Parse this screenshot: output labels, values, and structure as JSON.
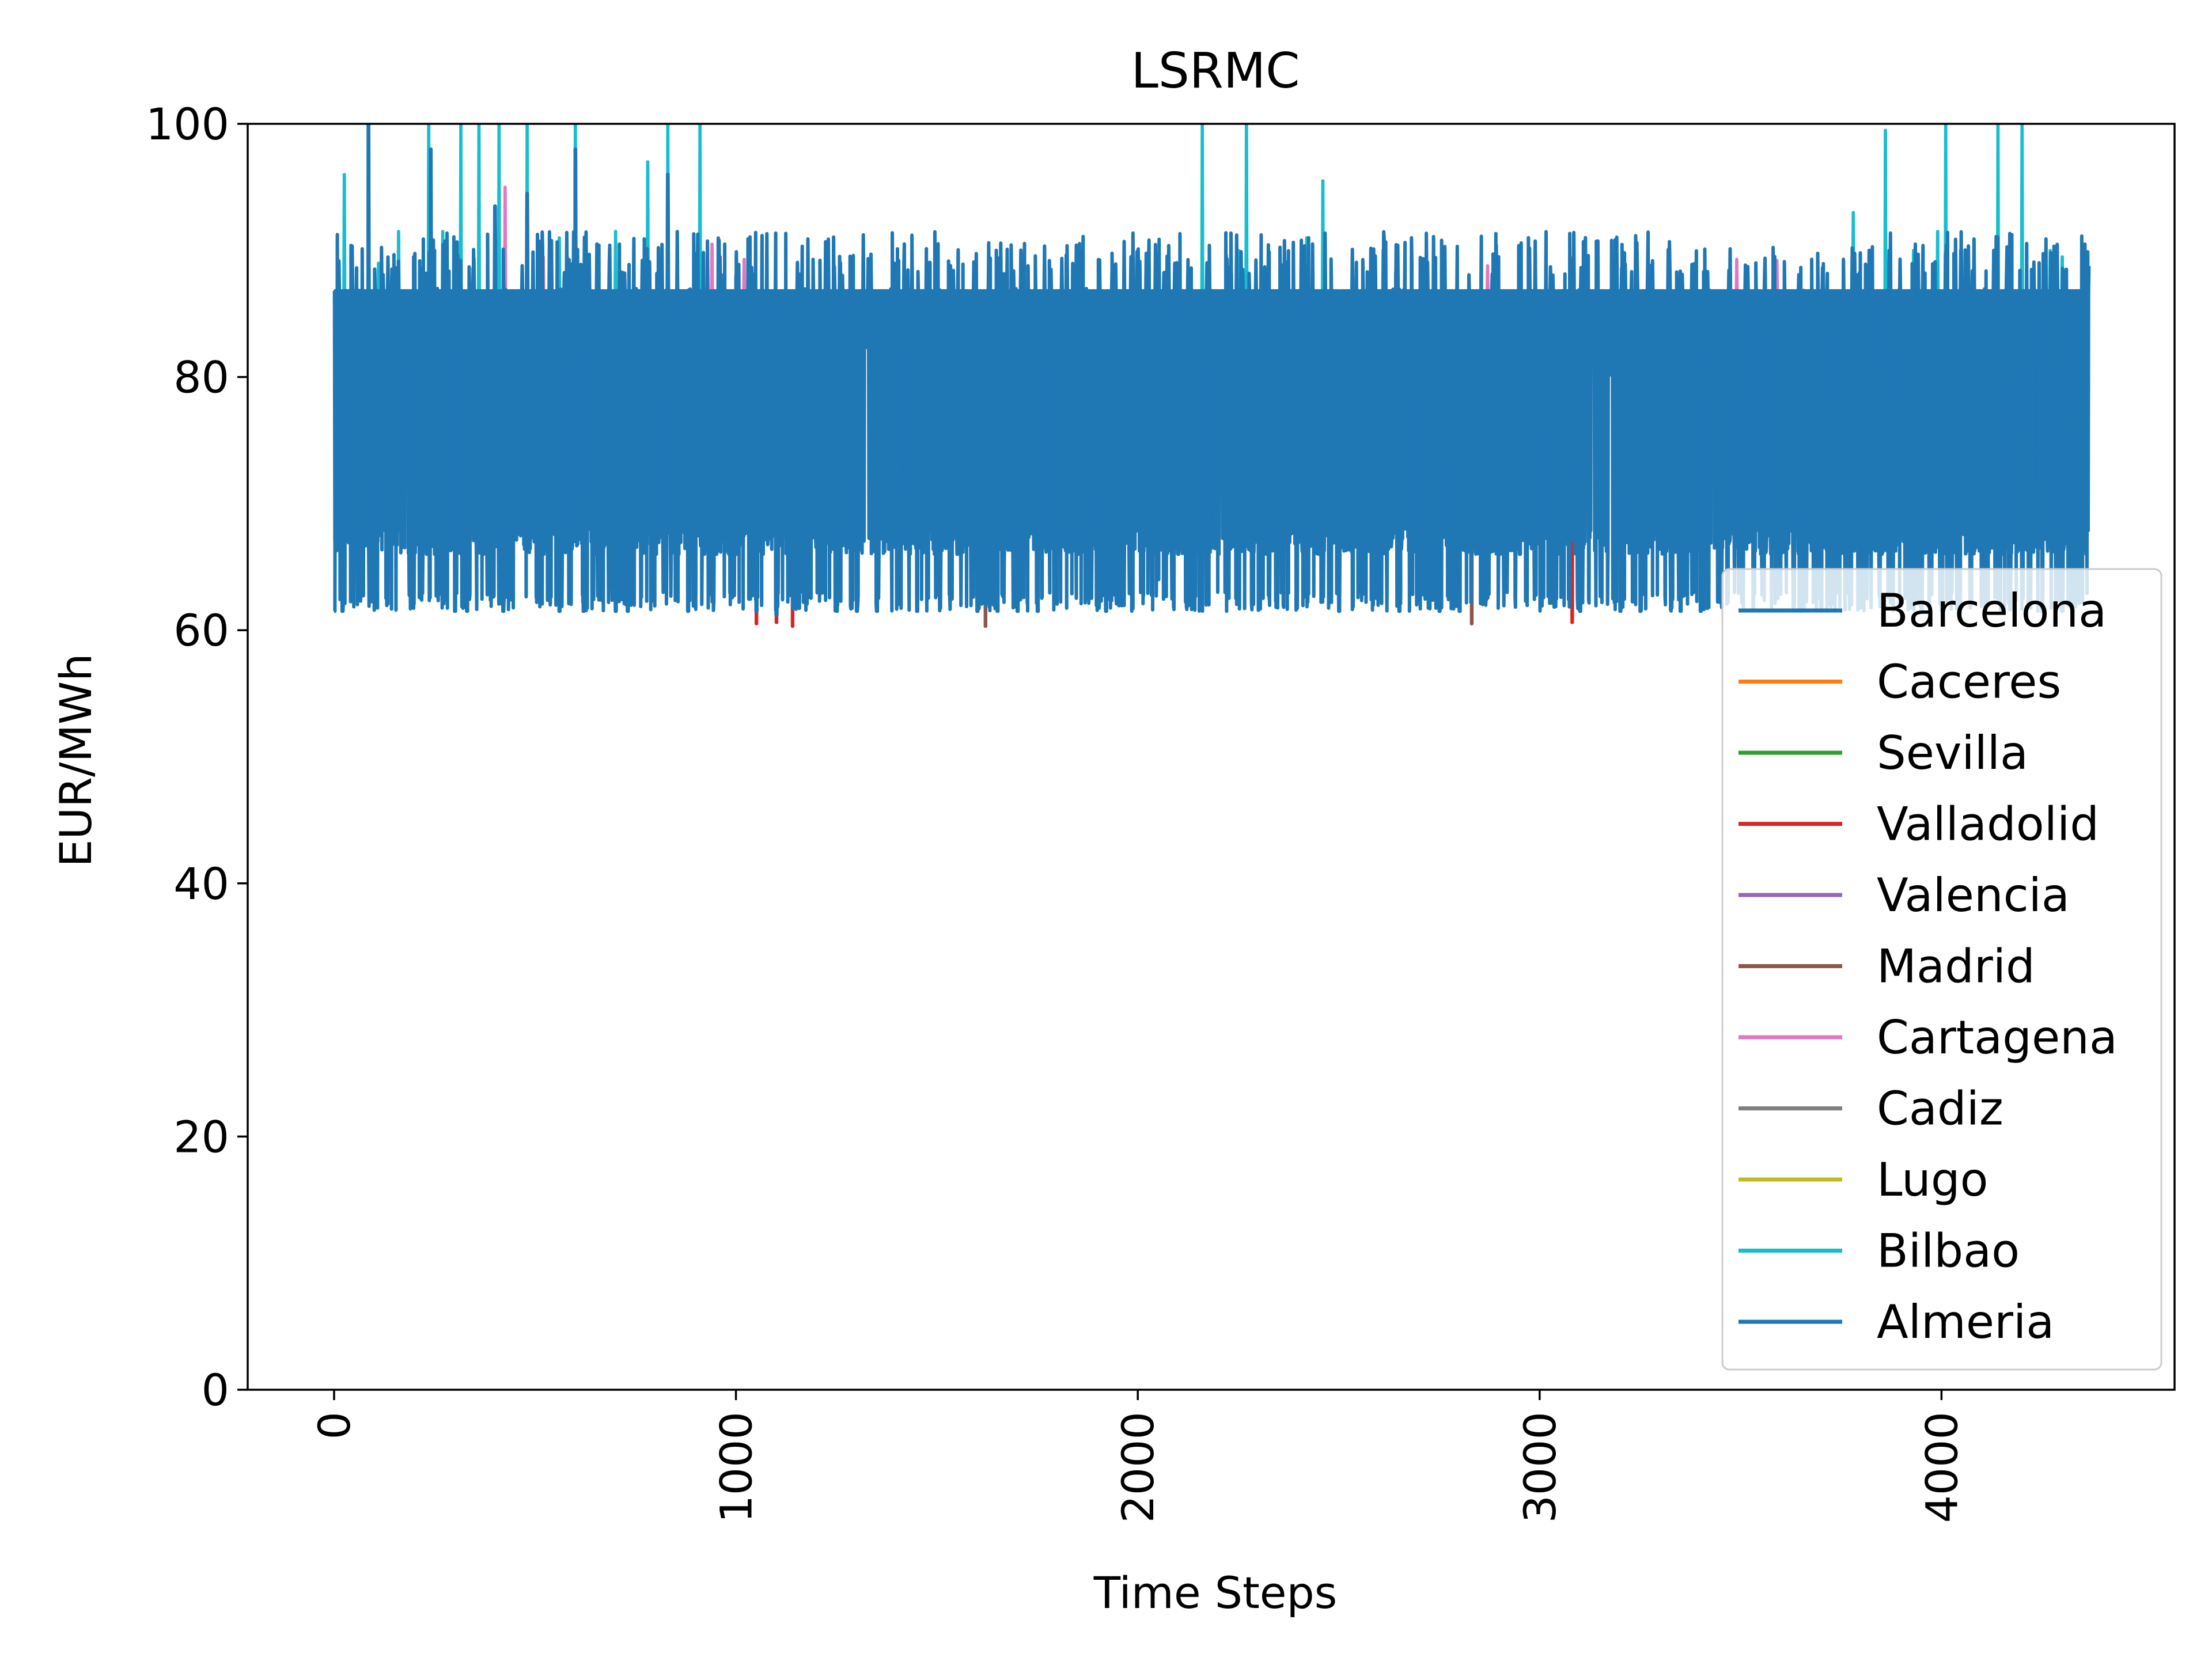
{
  "chart_data": {
    "type": "line",
    "title": "LSRMC",
    "xlabel": "Time Steps",
    "ylabel": "EUR/MWh",
    "xlim": [
      -215,
      4580
    ],
    "ylim": [
      0,
      100
    ],
    "x_ticks": [
      0,
      1000,
      2000,
      3000,
      4000
    ],
    "x_tick_labels": [
      "0",
      "1000",
      "2000",
      "3000",
      "4000"
    ],
    "y_ticks": [
      0,
      20,
      40,
      60,
      80,
      100
    ],
    "y_tick_labels": [
      "0",
      "20",
      "40",
      "60",
      "80",
      "100"
    ],
    "x_tick_rotation": 90,
    "grid": false,
    "legend": {
      "location": "lower-right",
      "frame": true
    },
    "series_count": 11,
    "time_steps": 4368,
    "baseline_value": 86.8,
    "series": [
      {
        "name": "Barcelona",
        "color": "#1f77b4",
        "dips": [
          [
            0,
            61.5
          ],
          [
            60,
            66
          ],
          [
            150,
            80.5
          ],
          [
            230,
            66
          ],
          [
            300,
            61.5
          ],
          [
            370,
            66
          ],
          [
            420,
            61.5
          ],
          [
            520,
            66
          ],
          [
            620,
            61.5
          ],
          [
            700,
            61.5
          ],
          [
            800,
            66
          ],
          [
            880,
            61.5
          ],
          [
            1000,
            66
          ],
          [
            1100,
            61.2
          ],
          [
            1250,
            61.5
          ],
          [
            1350,
            61.5
          ],
          [
            1500,
            66
          ],
          [
            1600,
            61.5
          ],
          [
            1700,
            61.5
          ],
          [
            1800,
            66
          ],
          [
            1920,
            61.5
          ],
          [
            2100,
            66
          ],
          [
            2350,
            66
          ],
          [
            2500,
            61.5
          ],
          [
            2650,
            61.5
          ],
          [
            2800,
            61.5
          ],
          [
            2950,
            66
          ],
          [
            3100,
            61.5
          ],
          [
            3250,
            61.5
          ],
          [
            3400,
            61.5
          ],
          [
            3550,
            66
          ],
          [
            3700,
            61.5
          ],
          [
            3850,
            66
          ],
          [
            4000,
            61.5
          ],
          [
            4150,
            66
          ],
          [
            4300,
            61.5
          ]
        ],
        "spikes": [
          [
            85,
            100
          ],
          [
            240,
            98
          ],
          [
            600,
            98
          ],
          [
            1000,
            88
          ],
          [
            2260,
            88.5
          ],
          [
            3820,
            90
          ],
          [
            4130,
            90
          ]
        ]
      },
      {
        "name": "Caceres",
        "color": "#ff7f0e",
        "dips": [],
        "spikes": []
      },
      {
        "name": "Sevilla",
        "color": "#2ca02c",
        "dips": [],
        "spikes": []
      },
      {
        "name": "Valladolid",
        "color": "#d62728",
        "dips": [
          [
            1050,
            60.5
          ],
          [
            1100,
            60.6
          ],
          [
            1140,
            60.3
          ],
          [
            3080,
            60.6
          ]
        ],
        "spikes": [
          [
            960,
            89.5
          ]
        ]
      },
      {
        "name": "Valencia",
        "color": "#9467bd",
        "dips": [],
        "spikes": []
      },
      {
        "name": "Madrid",
        "color": "#8c564b",
        "dips": [
          [
            1620,
            60.3
          ],
          [
            2830,
            60.5
          ]
        ],
        "spikes": []
      },
      {
        "name": "Cartagena",
        "color": "#e377c2",
        "dips": [],
        "spikes": [
          [
            425,
            95
          ],
          [
            520,
            89.5
          ],
          [
            580,
            89.5
          ],
          [
            940,
            90.5
          ],
          [
            1020,
            89.3
          ],
          [
            2870,
            88.8
          ],
          [
            3490,
            89.3
          ],
          [
            3590,
            89.2
          ]
        ]
      },
      {
        "name": "Cadiz",
        "color": "#7f7f7f",
        "dips": [],
        "spikes": []
      },
      {
        "name": "Lugo",
        "color": "#bcbd22",
        "dips": [
          [
            2160,
            71.5
          ],
          [
            2260,
            75
          ],
          [
            2280,
            79.5
          ],
          [
            2600,
            77
          ]
        ],
        "spikes": []
      },
      {
        "name": "Bilbao",
        "color": "#17becf",
        "dips": [],
        "spikes": [
          [
            25,
            96
          ],
          [
            110,
            89
          ],
          [
            160,
            91.5
          ],
          [
            235,
            100
          ],
          [
            270,
            91.5
          ],
          [
            315,
            100
          ],
          [
            360,
            100
          ],
          [
            410,
            100
          ],
          [
            480,
            100
          ],
          [
            560,
            91
          ],
          [
            600,
            100
          ],
          [
            700,
            91.5
          ],
          [
            780,
            97
          ],
          [
            830,
            100
          ],
          [
            910,
            100
          ],
          [
            2160,
            100
          ],
          [
            2250,
            90
          ],
          [
            2270,
            100
          ],
          [
            2420,
            91
          ],
          [
            2460,
            95.5
          ],
          [
            2610,
            90
          ],
          [
            3780,
            93
          ],
          [
            3860,
            99.5
          ],
          [
            3930,
            90
          ],
          [
            3990,
            91.5
          ],
          [
            4010,
            100
          ],
          [
            4140,
            100
          ],
          [
            4200,
            100
          ],
          [
            4270,
            90
          ],
          [
            4300,
            89.5
          ]
        ]
      },
      {
        "name": "Almeria",
        "color": "#1f77b4",
        "dips": [
          [
            20,
            61.5
          ],
          [
            100,
            66
          ],
          [
            180,
            80.5
          ],
          [
            250,
            66
          ],
          [
            330,
            61.5
          ],
          [
            440,
            66
          ],
          [
            560,
            61.5
          ],
          [
            650,
            66
          ],
          [
            730,
            61.5
          ],
          [
            820,
            66
          ],
          [
            950,
            66
          ],
          [
            1050,
            61.5
          ],
          [
            1150,
            66
          ],
          [
            1300,
            61.5
          ],
          [
            1450,
            61.5
          ],
          [
            1550,
            66
          ],
          [
            1650,
            61.5
          ],
          [
            1750,
            61.5
          ],
          [
            1850,
            66
          ],
          [
            2050,
            64
          ],
          [
            2200,
            66
          ],
          [
            2450,
            66
          ],
          [
            2600,
            66
          ],
          [
            2750,
            61.5
          ],
          [
            2900,
            66
          ],
          [
            3050,
            66
          ],
          [
            3200,
            61.5
          ],
          [
            3350,
            61.5
          ],
          [
            3500,
            66
          ],
          [
            3650,
            61.5
          ],
          [
            3800,
            66
          ],
          [
            3950,
            61.5
          ],
          [
            4100,
            66
          ],
          [
            4250,
            61.5
          ],
          [
            4360,
            66
          ]
        ],
        "spikes": [
          [
            400,
            93.5
          ],
          [
            480,
            94.5
          ],
          [
            830,
            96
          ],
          [
            3870,
            90
          ],
          [
            4310,
            88.5
          ]
        ]
      }
    ]
  }
}
